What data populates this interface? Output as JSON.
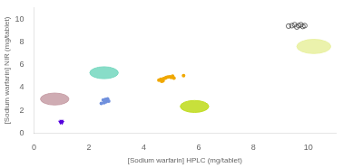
{
  "chart_data": {
    "type": "scatter",
    "xlabel": "[Sodium warfarin] HPLC (mg/tablet)",
    "ylabel": "[Sodium warfarin] NIR (mg/tablet)",
    "xlim": [
      0,
      11
    ],
    "ylim": [
      0,
      11
    ],
    "xticks": [
      0,
      2,
      4,
      6,
      8,
      10
    ],
    "yticks": [
      0,
      2,
      4,
      6,
      8,
      10
    ],
    "grid": false,
    "series": [
      {
        "type": "circle",
        "colors": [
          "#c8a0a8",
          "#78d8c0",
          "#c0dc20",
          "#e8f0a0"
        ],
        "x": [
          0.75,
          2.55,
          5.85,
          10.2
        ],
        "values": [
          3.0,
          5.3,
          2.35,
          7.6
        ],
        "radius": [
          0.52,
          0.52,
          0.52,
          0.62
        ]
      },
      {
        "type": "scatter",
        "color": "#5500dd",
        "marker": "triangle_down",
        "x": [
          1.0,
          0.96,
          1.02
        ],
        "values": [
          1.05,
          0.98,
          0.95
        ]
      },
      {
        "type": "scatter",
        "color": "#7090dd",
        "marker": "circle",
        "x": [
          2.45,
          2.55,
          2.62,
          2.67,
          2.52,
          2.6,
          2.68,
          2.72
        ],
        "values": [
          2.62,
          2.68,
          2.75,
          2.85,
          2.92,
          2.97,
          3.02,
          2.82
        ]
      },
      {
        "type": "scatter",
        "color": "#f0a800",
        "marker": "circle",
        "x": [
          4.55,
          4.62,
          4.68,
          4.72,
          4.78,
          4.82,
          4.88,
          4.95,
          5.0,
          5.05,
          5.1,
          5.45,
          4.65,
          4.7
        ],
        "values": [
          4.65,
          4.72,
          4.68,
          4.78,
          4.82,
          4.88,
          4.92,
          4.95,
          4.88,
          5.0,
          4.82,
          5.05,
          4.55,
          4.6
        ]
      },
      {
        "type": "scatter",
        "color": "#444444",
        "marker": "open_circle",
        "x": [
          9.28,
          9.4,
          9.5,
          9.58,
          9.65,
          9.73,
          9.8,
          9.87
        ],
        "values": [
          9.38,
          9.42,
          9.5,
          9.3,
          9.43,
          9.5,
          9.35,
          9.42
        ]
      }
    ]
  }
}
